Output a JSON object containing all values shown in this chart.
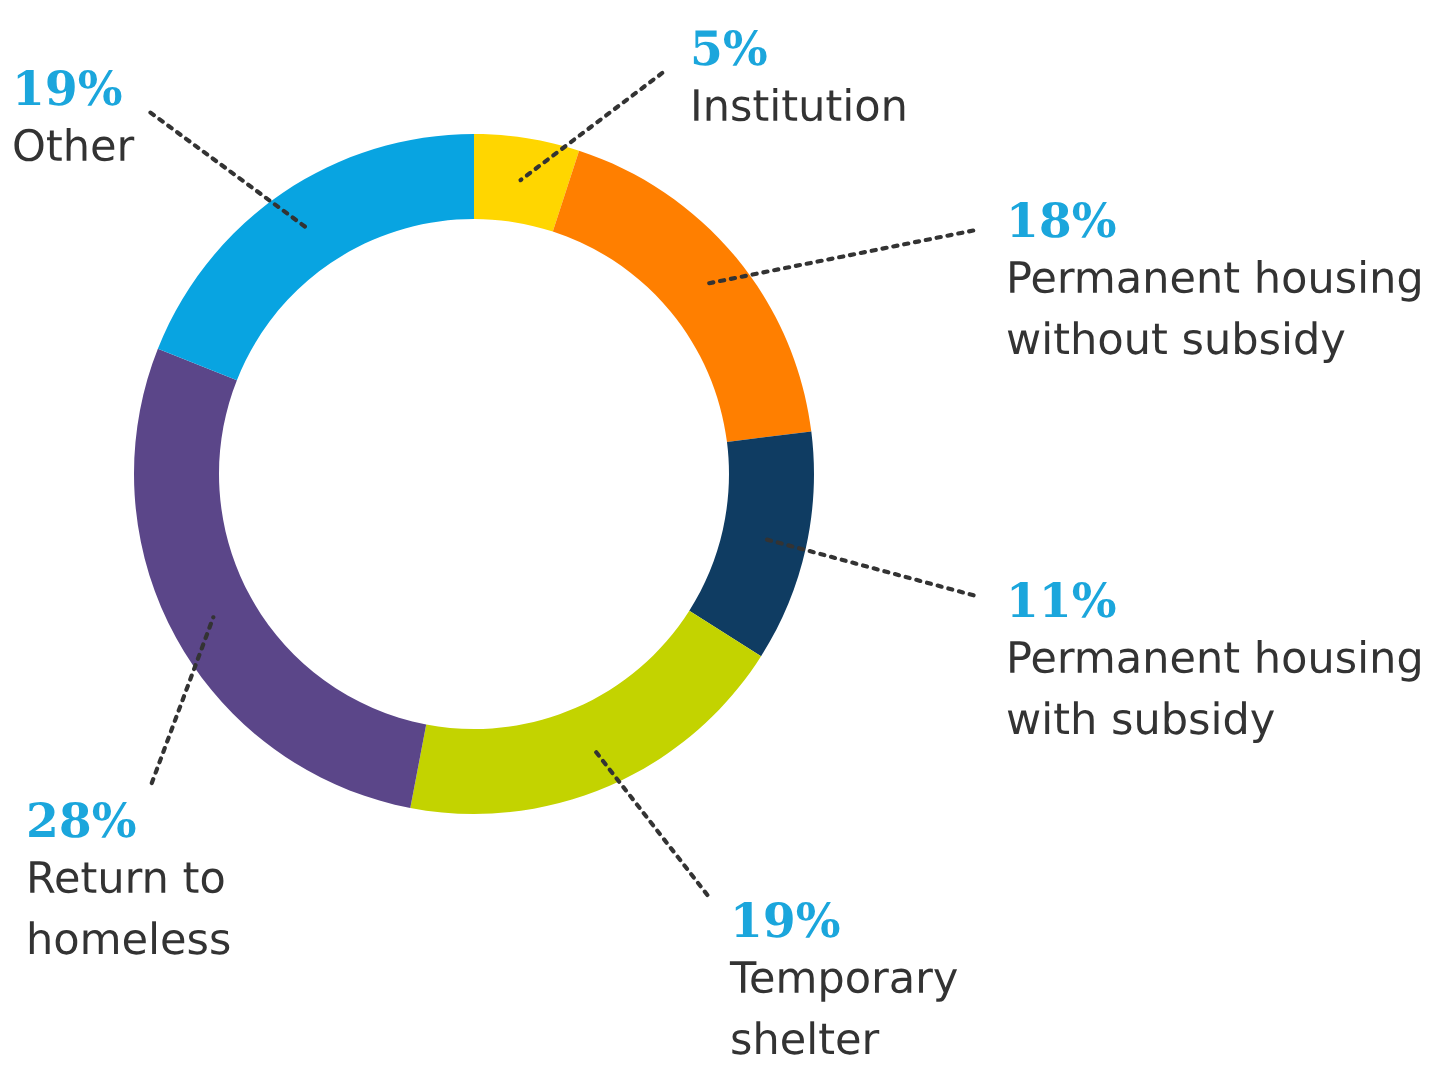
{
  "chart_data": {
    "type": "donut",
    "categories": [
      "Institution",
      "Permanent housing\nwithout subsidy",
      "Permanent housing\nwith subsidy",
      "Temporary\nshelter",
      "Return to\nhomeless",
      "Other"
    ],
    "values": [
      5,
      18,
      11,
      19,
      28,
      19
    ],
    "colors": [
      "#ffd600",
      "#ff7f00",
      "#0f3c62",
      "#c3d300",
      "#5b4689",
      "#08a4e1"
    ],
    "value_labels": [
      "5%",
      "18%",
      "11%",
      "19%",
      "28%",
      "19%"
    ],
    "legend": false
  }
}
